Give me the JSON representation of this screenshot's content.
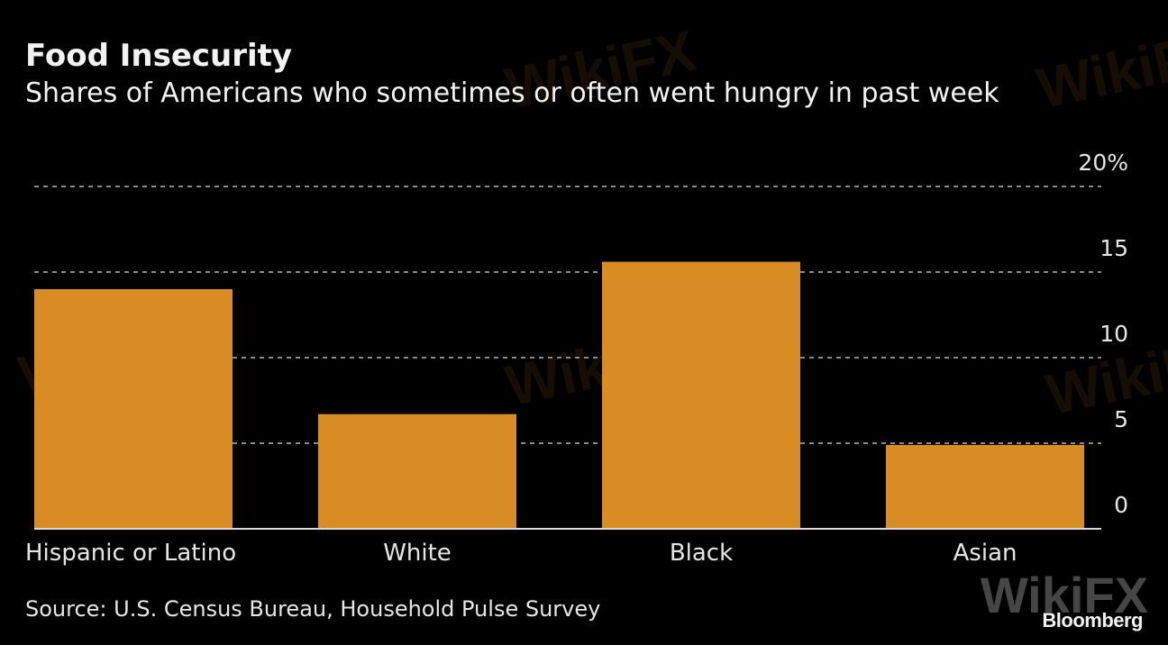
{
  "chart_data": {
    "type": "bar",
    "title": "Food Insecurity",
    "subtitle": "Shares of Americans who sometimes or often went hungry in past week",
    "categories": [
      "Hispanic or Latino",
      "White",
      "Black",
      "Asian"
    ],
    "values": [
      14.0,
      6.7,
      15.6,
      4.9
    ],
    "ylim": [
      0,
      20
    ],
    "yticks": [
      0,
      5,
      10,
      15,
      20
    ],
    "ytick_labels": [
      "0",
      "5",
      "10",
      "15",
      "20%"
    ],
    "yaxis_side": "right",
    "grid": true,
    "xlabel": "",
    "ylabel": "",
    "bar_color": "#d98b24",
    "legend": "none"
  },
  "footer": {
    "source": "Source: U.S. Census Bureau, Household Pulse Survey",
    "brand": "Bloomberg"
  },
  "watermark": {
    "text": "WikiFX"
  }
}
